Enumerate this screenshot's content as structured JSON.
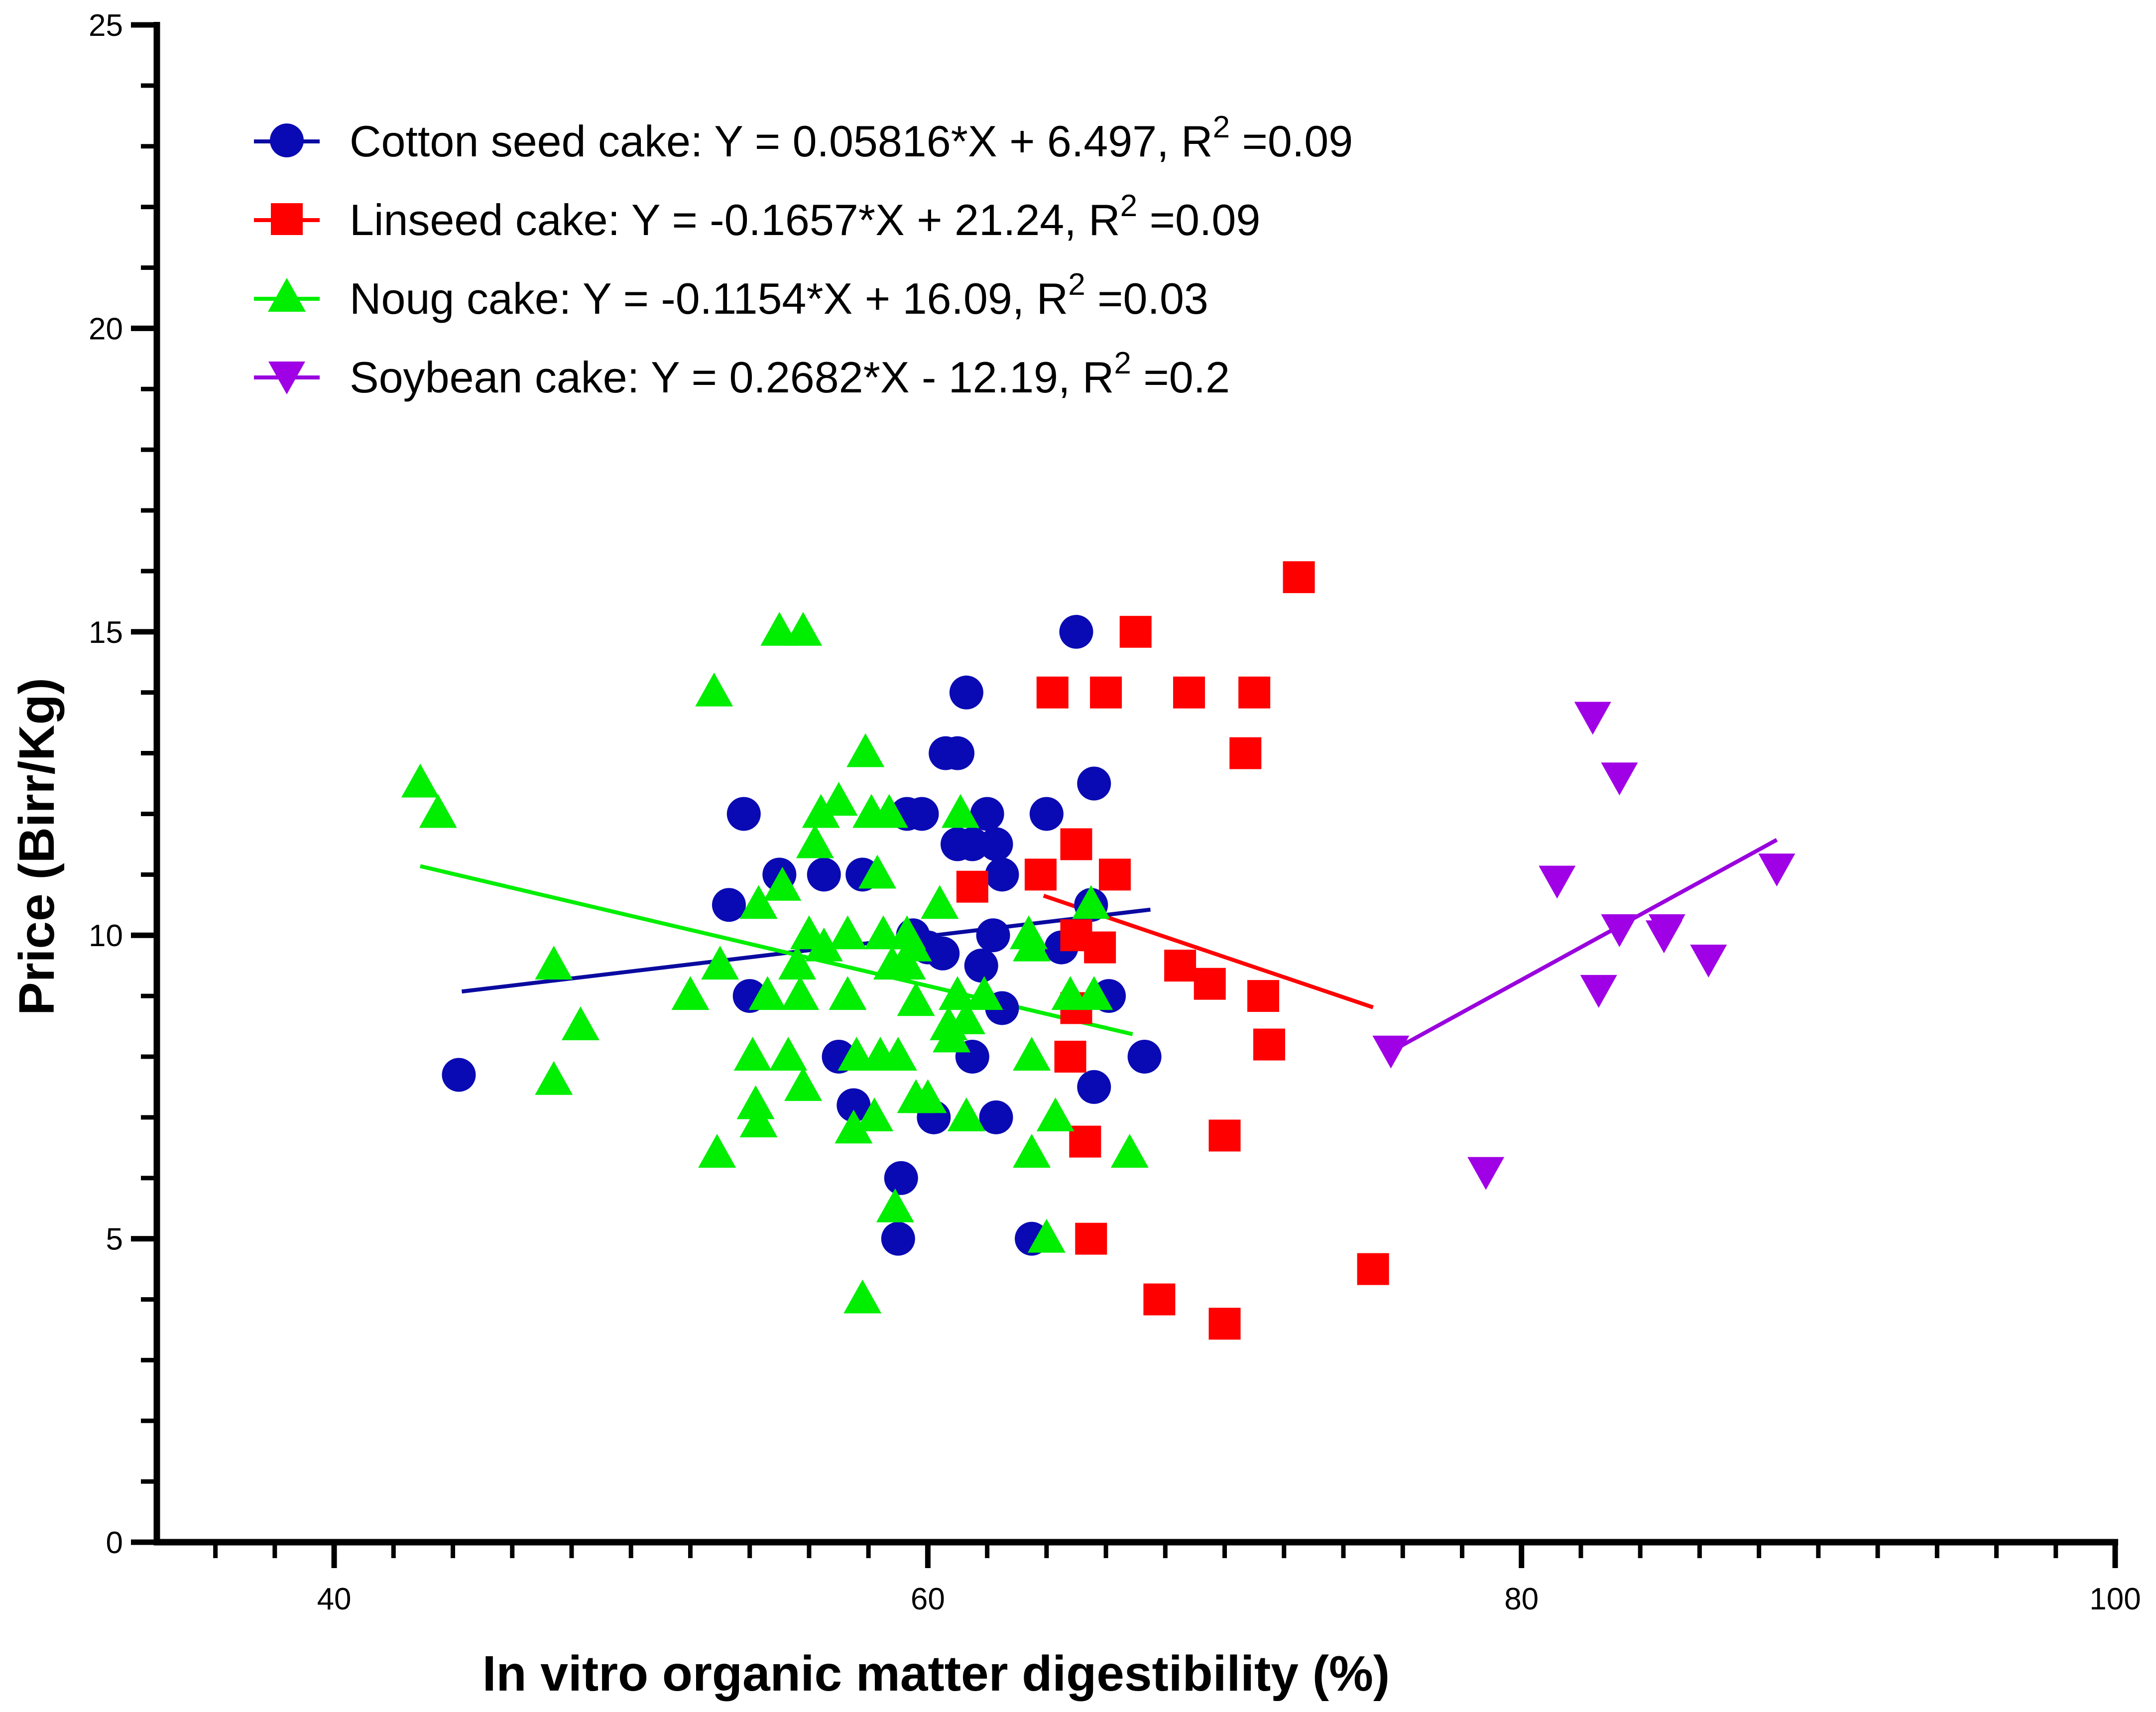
{
  "chart_data": {
    "type": "scatter",
    "title": "",
    "xlabel": "In vitro organic matter digestibility (%)",
    "ylabel": "Price (Birr/Kg)",
    "xlim": [
      35,
      100
    ],
    "ylim": [
      0,
      25
    ],
    "x_major_ticks": [
      40,
      60,
      80,
      100
    ],
    "x_minor_step": 2,
    "y_major_ticks": [
      0,
      5,
      10,
      15,
      20,
      25
    ],
    "y_minor_step": 1,
    "grid": false,
    "legend_position": "top-left",
    "series": [
      {
        "name": "Cotton seed cake",
        "marker": "circle",
        "color": "#0a0ab4",
        "line_color": "#0a0aa0",
        "legend": "Cotton seed cake:    Y = 0.05816*X + 6.497, R",
        "legend_sup": "2",
        "legend_tail": " =0.09",
        "slope": 0.05816,
        "intercept": 6.497,
        "fit_x": [
          44.3,
          67.5
        ],
        "points": [
          [
            44.2,
            7.7
          ],
          [
            53.3,
            10.5
          ],
          [
            53.8,
            12.0
          ],
          [
            54.0,
            9.0
          ],
          [
            55.0,
            11.0
          ],
          [
            56.5,
            11.0
          ],
          [
            57.0,
            8.0
          ],
          [
            57.5,
            7.2
          ],
          [
            57.8,
            11.0
          ],
          [
            59.0,
            5.0
          ],
          [
            59.1,
            6.0
          ],
          [
            59.3,
            12.0
          ],
          [
            59.8,
            12.0
          ],
          [
            59.5,
            10.0
          ],
          [
            60.0,
            9.8
          ],
          [
            60.2,
            7.0
          ],
          [
            60.5,
            9.7
          ],
          [
            60.6,
            13.0
          ],
          [
            61.0,
            13.0
          ],
          [
            61.0,
            11.5
          ],
          [
            61.3,
            14.0
          ],
          [
            61.5,
            8.0
          ],
          [
            61.5,
            11.5
          ],
          [
            61.8,
            9.5
          ],
          [
            62.0,
            12.0
          ],
          [
            62.2,
            10.0
          ],
          [
            62.3,
            11.5
          ],
          [
            62.5,
            8.8
          ],
          [
            62.5,
            11.0
          ],
          [
            62.3,
            7.0
          ],
          [
            63.5,
            5.0
          ],
          [
            64.0,
            12.0
          ],
          [
            64.5,
            9.8
          ],
          [
            65.0,
            15.0
          ],
          [
            65.5,
            10.5
          ],
          [
            65.6,
            12.5
          ],
          [
            65.6,
            7.5
          ],
          [
            66.1,
            9.0
          ],
          [
            67.3,
            8.0
          ]
        ]
      },
      {
        "name": "Linseed cake",
        "marker": "square",
        "color": "#ff0000",
        "line_color": "#ff0000",
        "legend": "Linseed cake: Y = -0.1657*X + 21.24, R",
        "legend_sup": "2",
        "legend_tail": " =0.09",
        "slope": -0.1657,
        "intercept": 21.24,
        "fit_x": [
          63.9,
          75.0
        ],
        "points": [
          [
            61.5,
            10.8
          ],
          [
            63.8,
            11.0
          ],
          [
            64.2,
            14.0
          ],
          [
            64.8,
            8.0
          ],
          [
            65.0,
            11.5
          ],
          [
            65.0,
            10.0
          ],
          [
            65.0,
            8.8
          ],
          [
            65.3,
            6.6
          ],
          [
            65.5,
            5.0
          ],
          [
            65.8,
            9.8
          ],
          [
            66.0,
            14.0
          ],
          [
            66.3,
            11.0
          ],
          [
            67.0,
            15.0
          ],
          [
            67.8,
            4.0
          ],
          [
            68.5,
            9.5
          ],
          [
            68.8,
            14.0
          ],
          [
            69.5,
            9.2
          ],
          [
            70.0,
            3.6
          ],
          [
            70.0,
            6.7
          ],
          [
            70.7,
            13.0
          ],
          [
            71.0,
            14.0
          ],
          [
            71.3,
            9.0
          ],
          [
            71.5,
            8.2
          ],
          [
            72.5,
            15.9
          ],
          [
            75.0,
            4.5
          ]
        ]
      },
      {
        "name": "Noug cake",
        "marker": "triangle-up",
        "color": "#00ee00",
        "line_color": "#00ee00",
        "legend": "Noug cake: Y = -0.1154*X + 16.09, R",
        "legend_sup": "2",
        "legend_tail": " =0.03",
        "slope": -0.1154,
        "intercept": 16.09,
        "fit_x": [
          42.9,
          66.9
        ],
        "points": [
          [
            42.9,
            12.5
          ],
          [
            43.5,
            12.0
          ],
          [
            47.4,
            9.5
          ],
          [
            47.4,
            7.6
          ],
          [
            48.3,
            8.5
          ],
          [
            52.0,
            9.0
          ],
          [
            52.8,
            14.0
          ],
          [
            52.9,
            6.4
          ],
          [
            53.0,
            9.5
          ],
          [
            54.1,
            8.0
          ],
          [
            54.2,
            7.2
          ],
          [
            54.3,
            6.9
          ],
          [
            54.3,
            10.5
          ],
          [
            54.6,
            9.0
          ],
          [
            55.1,
            10.8
          ],
          [
            55.0,
            15.0
          ],
          [
            55.3,
            8.0
          ],
          [
            55.8,
            15.0
          ],
          [
            55.6,
            9.5
          ],
          [
            55.7,
            9.0
          ],
          [
            55.8,
            7.5
          ],
          [
            56.0,
            10.0
          ],
          [
            56.2,
            11.5
          ],
          [
            56.4,
            12.0
          ],
          [
            56.5,
            9.8
          ],
          [
            57.0,
            12.2
          ],
          [
            57.3,
            10.0
          ],
          [
            57.3,
            9.0
          ],
          [
            57.5,
            6.8
          ],
          [
            57.6,
            8.0
          ],
          [
            57.8,
            4.0
          ],
          [
            57.9,
            13.0
          ],
          [
            58.1,
            12.0
          ],
          [
            58.2,
            7.0
          ],
          [
            58.3,
            11.0
          ],
          [
            58.4,
            8.0
          ],
          [
            58.5,
            10.0
          ],
          [
            58.7,
            12.0
          ],
          [
            58.8,
            9.5
          ],
          [
            58.9,
            5.5
          ],
          [
            59.0,
            8.0
          ],
          [
            59.3,
            10.0
          ],
          [
            59.5,
            9.8
          ],
          [
            59.3,
            9.5
          ],
          [
            59.6,
            7.3
          ],
          [
            59.6,
            8.9
          ],
          [
            60.0,
            7.3
          ],
          [
            60.4,
            10.5
          ],
          [
            60.7,
            8.5
          ],
          [
            60.8,
            8.3
          ],
          [
            61.0,
            9.0
          ],
          [
            61.1,
            12.0
          ],
          [
            61.3,
            7.0
          ],
          [
            61.3,
            8.6
          ],
          [
            61.9,
            9.0
          ],
          [
            63.4,
            10.0
          ],
          [
            63.5,
            9.8
          ],
          [
            63.5,
            8.0
          ],
          [
            63.5,
            6.4
          ],
          [
            64.0,
            5.0
          ],
          [
            64.3,
            7.0
          ],
          [
            64.8,
            9.0
          ],
          [
            65.5,
            10.5
          ],
          [
            65.6,
            9.0
          ],
          [
            66.8,
            6.4
          ]
        ]
      },
      {
        "name": "Soybean cake",
        "marker": "triangle-down",
        "color": "#a000e6",
        "line_color": "#9900dd",
        "legend": "Soybean cake: Y = 0.2682*X - 12.19, R",
        "legend_sup": "2",
        "legend_tail": " =0.2",
        "slope": 0.2682,
        "intercept": -12.19,
        "fit_x": [
          75.7,
          88.6
        ],
        "points": [
          [
            75.6,
            8.1
          ],
          [
            78.8,
            6.1
          ],
          [
            81.2,
            10.9
          ],
          [
            82.4,
            13.6
          ],
          [
            82.6,
            9.1
          ],
          [
            83.3,
            12.6
          ],
          [
            83.3,
            10.1
          ],
          [
            84.8,
            10.0
          ],
          [
            84.9,
            10.1
          ],
          [
            86.3,
            9.6
          ],
          [
            88.6,
            11.1
          ]
        ]
      }
    ]
  }
}
